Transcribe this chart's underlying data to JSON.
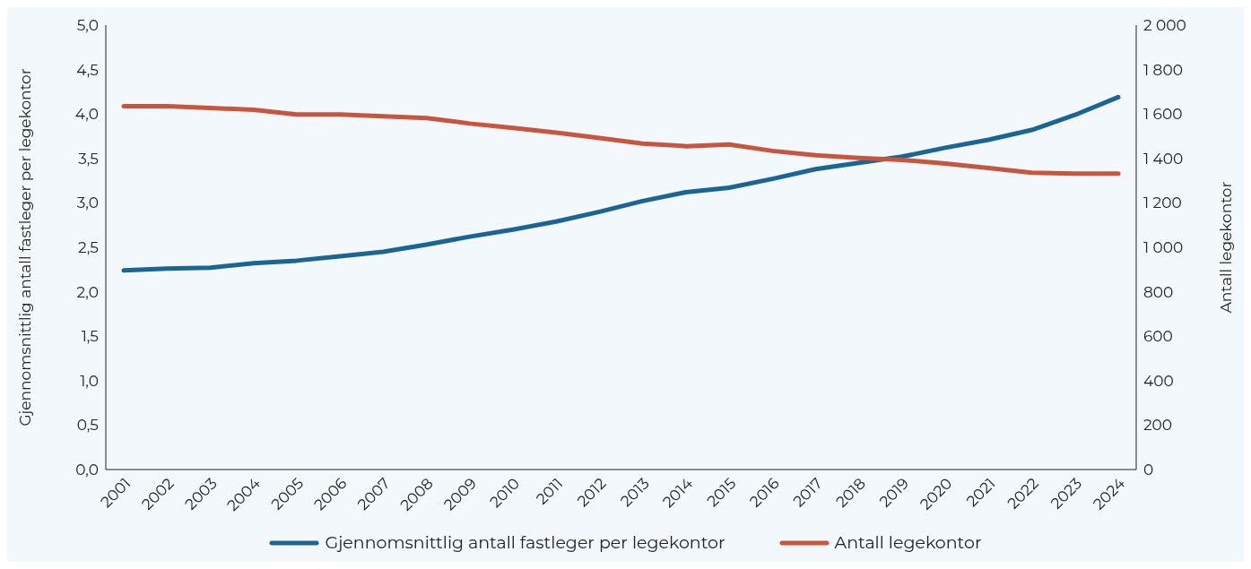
{
  "chart_data": {
    "type": "line",
    "xlabel": null,
    "ylabel": "Gjennomsnittlig antall fastleger per legekontor",
    "y2label": "Antall legekontor",
    "categories": [
      "2001",
      "2002",
      "2003",
      "2004",
      "2005",
      "2006",
      "2007",
      "2008",
      "2009",
      "2010",
      "2011",
      "2012",
      "2013",
      "2014",
      "2015",
      "2016",
      "2017",
      "2018",
      "2019",
      "2020",
      "2021",
      "2022",
      "2023",
      "2024"
    ],
    "series": [
      {
        "name": "Gjennomsnittlig antall fastleger per legekontor",
        "color": "#1a6596",
        "values": [
          2.24,
          2.26,
          2.27,
          2.32,
          2.35,
          2.4,
          2.45,
          2.53,
          2.62,
          2.7,
          2.79,
          2.9,
          3.02,
          3.12,
          3.17,
          3.27,
          3.38,
          3.45,
          3.52,
          3.62,
          3.71,
          3.82,
          3.99,
          4.19
        ]
      },
      {
        "name": "Antall legekontor",
        "color": "#c8553d",
        "axis": "y2",
        "values": [
          1635,
          1635,
          1627,
          1619,
          1598,
          1598,
          1590,
          1582,
          1557,
          1537,
          1516,
          1492,
          1467,
          1455,
          1463,
          1434,
          1414,
          1402,
          1393,
          1377,
          1357,
          1336,
          1332,
          1332
        ]
      }
    ],
    "ylim": [
      0,
      5
    ],
    "yticks": [
      {
        "value": 0,
        "label": "0,0"
      },
      {
        "value": 0.5,
        "label": "0,5"
      },
      {
        "value": 1,
        "label": "1,0"
      },
      {
        "value": 1.5,
        "label": "1,5"
      },
      {
        "value": 2,
        "label": "2,0"
      },
      {
        "value": 2.5,
        "label": "2,5"
      },
      {
        "value": 3,
        "label": "3,0"
      },
      {
        "value": 3.5,
        "label": "3,5"
      },
      {
        "value": 4,
        "label": "4,0"
      },
      {
        "value": 4.5,
        "label": "4,5"
      },
      {
        "value": 5,
        "label": "5,0"
      }
    ],
    "y2lim": [
      0,
      2000
    ],
    "y2ticks": [
      0,
      200,
      400,
      600,
      800,
      {
        "value": 1000,
        "label": "1 000"
      },
      {
        "value": 1200,
        "label": "1 200"
      },
      {
        "value": 1400,
        "label": "1 400"
      },
      {
        "value": 1600,
        "label": "1 600"
      },
      {
        "value": 1800,
        "label": "1 800"
      },
      {
        "value": 2000,
        "label": "2 000"
      }
    ],
    "grid": false,
    "legend": "bottom",
    "line_style": "solid"
  }
}
